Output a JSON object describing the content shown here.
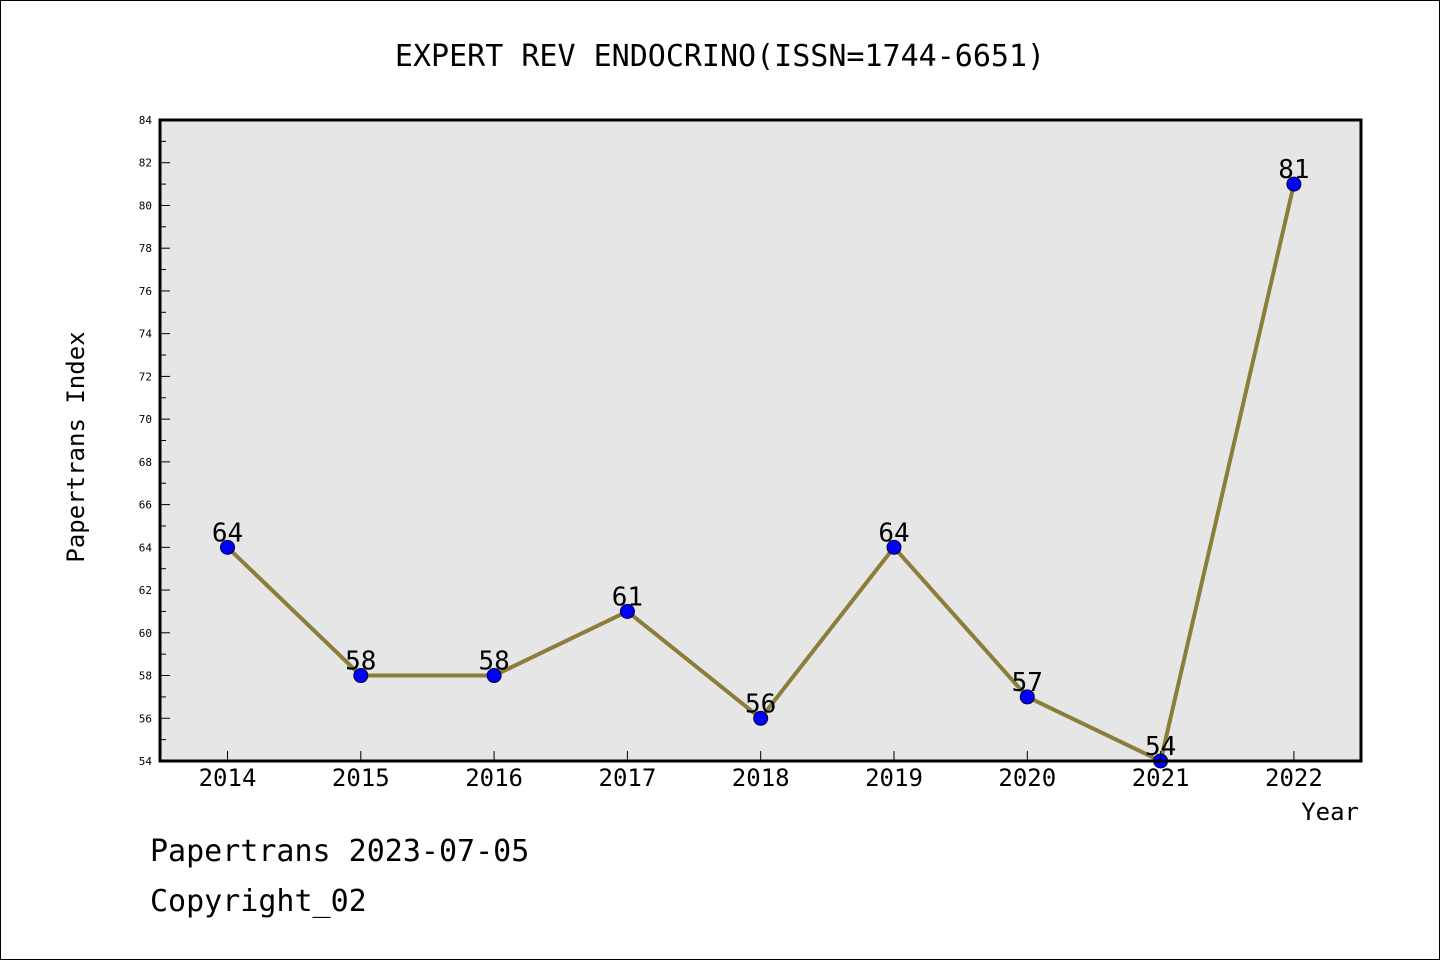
{
  "chart_data": {
    "type": "line",
    "title": "EXPERT REV ENDOCRINO(ISSN=1744-6651)",
    "xlabel": "Year",
    "ylabel": "Papertrans Index",
    "categories": [
      "2014",
      "2015",
      "2016",
      "2017",
      "2018",
      "2019",
      "2020",
      "2021",
      "2022"
    ],
    "series": [
      {
        "values": [
          64,
          58,
          58,
          61,
          56,
          64,
          57,
          54,
          81
        ]
      }
    ],
    "data_labels": [
      "64",
      "58",
      "58",
      "61",
      "56",
      "64",
      "57",
      "54",
      "81"
    ],
    "ylim": [
      54,
      84
    ],
    "yticks": [
      "54",
      "56",
      "58",
      "60",
      "62",
      "64",
      "66",
      "68",
      "70",
      "72",
      "74",
      "76",
      "78",
      "80",
      "82",
      "84"
    ],
    "grid": false,
    "legend": "none",
    "colors": {
      "line": "#8B7D3A",
      "marker": "#0000FF",
      "plot_background": "#E6E6E6"
    }
  },
  "footer": {
    "line1": "Papertrans 2023-07-05",
    "line2": "Copyright_02"
  }
}
